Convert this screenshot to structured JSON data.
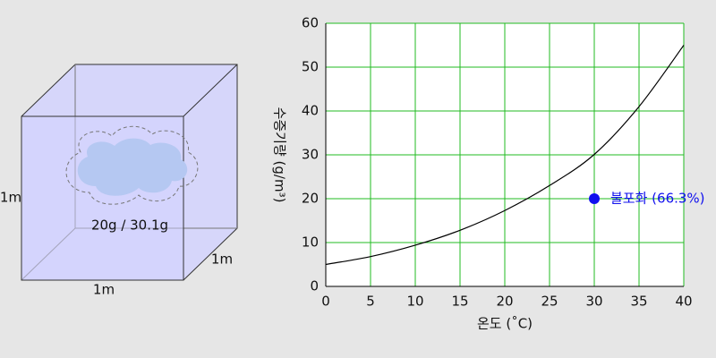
{
  "diagram": {
    "cube_left_label": "1m",
    "cube_bottom_label": "1m",
    "cube_depth_label": "1m",
    "cloud_label": "20g / 30.1g"
  },
  "chart_data": {
    "type": "line",
    "x_label": "온도 (˚C)",
    "y_label": "수증기량 (g/m³)",
    "x": [
      0,
      5,
      10,
      15,
      20,
      25,
      30,
      35,
      40
    ],
    "values": [
      5,
      6.8,
      9.4,
      12.8,
      17.3,
      23,
      30.1,
      41,
      55
    ],
    "color": "#000000",
    "xlim": [
      0,
      40
    ],
    "ylim": [
      0,
      60
    ],
    "xticks": [
      0,
      5,
      10,
      15,
      20,
      25,
      30,
      35,
      40
    ],
    "yticks": [
      0,
      10,
      20,
      30,
      40,
      50,
      60
    ],
    "grid": true,
    "grid_color": "#22bb22",
    "point": {
      "x": 30,
      "y": 20,
      "label": "불포화 (66.3%)",
      "color": "#1010ee"
    }
  }
}
